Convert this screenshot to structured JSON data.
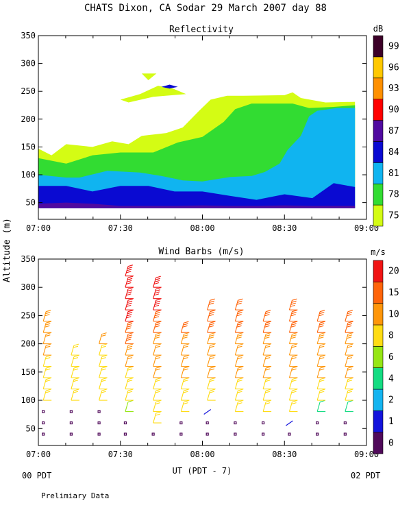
{
  "header": {
    "title": "CHATS Dixon, CA   Sodar  29 March 2007   day  88",
    "y_axis_label": "Altitude (m)",
    "x_axis_label": "UT  (PDT - 7)",
    "left_time_note": "00 PDT",
    "right_time_note": "02 PDT",
    "footnote": "Prelimiary Data"
  },
  "chart_data": [
    {
      "type": "heatmap",
      "title": "Reflectivity",
      "colorbar_label": "dB",
      "xlabel": "UT  (PDT - 7)",
      "ylabel": "Altitude (m)",
      "x_ticks": [
        "07:00",
        "07:30",
        "08:00",
        "08:30",
        "09:00"
      ],
      "xlim_hours": [
        7.0,
        9.0
      ],
      "ylim": [
        20,
        350
      ],
      "y_ticks": [
        50,
        100,
        150,
        200,
        250,
        300,
        350
      ],
      "levels": [
        75,
        78,
        81,
        84,
        87,
        90,
        93,
        96,
        99
      ],
      "level_colors": [
        "#d4fc14",
        "#32dc32",
        "#10b4f0",
        "#0a0ad2",
        "#500aa0",
        "#ff0000",
        "#ff9000",
        "#ffc800",
        "#3c0028"
      ],
      "contours": [
        {
          "level": 75,
          "points": [
            [
              7.0,
              147
            ],
            [
              7.08,
              135
            ],
            [
              7.17,
              155
            ],
            [
              7.33,
              150
            ],
            [
              7.45,
              160
            ],
            [
              7.55,
              155
            ],
            [
              7.63,
              170
            ],
            [
              7.78,
              175
            ],
            [
              7.88,
              185
            ],
            [
              7.98,
              215
            ],
            [
              8.05,
              235
            ],
            [
              8.15,
              242
            ],
            [
              8.25,
              242
            ],
            [
              8.5,
              243
            ],
            [
              8.55,
              248
            ],
            [
              8.6,
              238
            ],
            [
              8.75,
              230
            ],
            [
              8.93,
              231
            ],
            [
              8.93,
              40
            ],
            [
              7.0,
              40
            ]
          ]
        },
        {
          "level": 75,
          "points": [
            [
              7.5,
              235
            ],
            [
              7.62,
              245
            ],
            [
              7.73,
              260
            ],
            [
              7.82,
              255
            ],
            [
              7.9,
              245
            ],
            [
              7.7,
              240
            ],
            [
              7.55,
              230
            ]
          ]
        },
        {
          "level": 75,
          "points": [
            [
              7.63,
              282
            ],
            [
              7.72,
              282
            ],
            [
              7.67,
              270
            ]
          ]
        },
        {
          "level": 78,
          "points": [
            [
              7.0,
              130
            ],
            [
              7.17,
              120
            ],
            [
              7.33,
              135
            ],
            [
              7.5,
              140
            ],
            [
              7.7,
              140
            ],
            [
              7.85,
              158
            ],
            [
              8.0,
              168
            ],
            [
              8.13,
              195
            ],
            [
              8.2,
              218
            ],
            [
              8.3,
              228
            ],
            [
              8.55,
              228
            ],
            [
              8.65,
              220
            ],
            [
              8.8,
              222
            ],
            [
              8.93,
              225
            ],
            [
              8.93,
              40
            ],
            [
              7.0,
              40
            ]
          ]
        },
        {
          "level": 81,
          "points": [
            [
              7.0,
              100
            ],
            [
              7.17,
              95
            ],
            [
              7.25,
              95
            ],
            [
              7.42,
              107
            ],
            [
              7.62,
              104
            ],
            [
              7.75,
              98
            ],
            [
              7.88,
              90
            ],
            [
              8.0,
              88
            ],
            [
              8.17,
              96
            ],
            [
              8.3,
              98
            ],
            [
              8.38,
              105
            ],
            [
              8.47,
              120
            ],
            [
              8.52,
              145
            ],
            [
              8.6,
              170
            ],
            [
              8.65,
              205
            ],
            [
              8.7,
              215
            ],
            [
              8.82,
              220
            ],
            [
              8.93,
              220
            ],
            [
              8.93,
              40
            ],
            [
              7.0,
              40
            ]
          ]
        },
        {
          "level": 84,
          "points": [
            [
              7.0,
              80
            ],
            [
              7.17,
              80
            ],
            [
              7.33,
              70
            ],
            [
              7.5,
              80
            ],
            [
              7.67,
              80
            ],
            [
              7.83,
              70
            ],
            [
              8.0,
              70
            ],
            [
              8.17,
              62
            ],
            [
              8.33,
              55
            ],
            [
              8.5,
              65
            ],
            [
              8.67,
              58
            ],
            [
              8.8,
              85
            ],
            [
              8.93,
              78
            ],
            [
              8.93,
              40
            ],
            [
              7.0,
              40
            ]
          ]
        },
        {
          "level": 87,
          "points": [
            [
              7.0,
              48
            ],
            [
              7.17,
              50
            ],
            [
              7.33,
              48
            ],
            [
              7.5,
              44
            ],
            [
              7.67,
              44
            ],
            [
              7.83,
              44
            ],
            [
              8.0,
              45
            ],
            [
              8.17,
              44
            ],
            [
              8.33,
              44
            ],
            [
              8.5,
              45
            ],
            [
              8.67,
              44
            ],
            [
              8.93,
              44
            ],
            [
              8.93,
              40
            ],
            [
              7.0,
              40
            ]
          ]
        },
        {
          "level": 84,
          "points": [
            [
              7.75,
              258
            ],
            [
              7.8,
              262
            ],
            [
              7.85,
              258
            ],
            [
              7.8,
              255
            ]
          ]
        }
      ]
    },
    {
      "type": "scatter",
      "title": "Wind Barbs (m/s)",
      "colorbar_label": "m/s",
      "xlabel": "UT  (PDT - 7)",
      "ylabel": "Altitude (m)",
      "x_ticks": [
        "07:00",
        "07:30",
        "08:00",
        "08:30",
        "09:00"
      ],
      "xlim_hours": [
        7.0,
        9.0
      ],
      "ylim": [
        20,
        350
      ],
      "y_ticks": [
        50,
        100,
        150,
        200,
        250,
        300,
        350
      ],
      "speed_levels": [
        0,
        1,
        2,
        4,
        6,
        8,
        10,
        15,
        20
      ],
      "speed_colors": [
        "#500a5a",
        "#1414dc",
        "#14b4f0",
        "#14dc82",
        "#96e614",
        "#ffdc14",
        "#ff960a",
        "#ff640a",
        "#f01414"
      ],
      "columns_hours": [
        7.03,
        7.2,
        7.37,
        7.53,
        7.7,
        7.87,
        8.03,
        8.2,
        8.37,
        8.53,
        8.7,
        8.87
      ],
      "altitudes": [
        40,
        60,
        80,
        100,
        120,
        140,
        160,
        180,
        200,
        220,
        240,
        260,
        280,
        300,
        320
      ],
      "profiles_speed_ms": [
        [
          0.3,
          0.4,
          0.5,
          8,
          9,
          9,
          9,
          10,
          10,
          14,
          14,
          null,
          null,
          null,
          null
        ],
        [
          0.3,
          0.4,
          0.5,
          8,
          9,
          9,
          9,
          9,
          null,
          null,
          null,
          null,
          null,
          null,
          null
        ],
        [
          0.3,
          0.4,
          0.5,
          8,
          9,
          9,
          9,
          9,
          10,
          null,
          null,
          null,
          null,
          null,
          null
        ],
        [
          0.3,
          0.4,
          6,
          8,
          9,
          9,
          10,
          14,
          18,
          18,
          20,
          20,
          20,
          20,
          21
        ],
        [
          0.3,
          8,
          8,
          9,
          9,
          10,
          10,
          12,
          14,
          16,
          18,
          20,
          20,
          21,
          null
        ],
        [
          0.3,
          0.4,
          8,
          9,
          9,
          10,
          10,
          12,
          14,
          15,
          null,
          null,
          null,
          null,
          null
        ],
        [
          0.3,
          0.4,
          1.5,
          8,
          9,
          10,
          10,
          12,
          14,
          15,
          16,
          16,
          null,
          null,
          null
        ],
        [
          0.3,
          0.4,
          8,
          9,
          9,
          10,
          10,
          12,
          14,
          15,
          16,
          17,
          null,
          null,
          null
        ],
        [
          0.3,
          0.4,
          8,
          9,
          9,
          10,
          10,
          12,
          14,
          15,
          16,
          null,
          null,
          null,
          null
        ],
        [
          0.3,
          1.5,
          8,
          9,
          9,
          10,
          10,
          12,
          14,
          15,
          16,
          18,
          null,
          null,
          null
        ],
        [
          0.3,
          0.4,
          5,
          8,
          9,
          10,
          10,
          12,
          14,
          15,
          16,
          null,
          null,
          null,
          null
        ],
        [
          0.3,
          0.4,
          4,
          8,
          9,
          10,
          10,
          12,
          14,
          15,
          16,
          null,
          null,
          null,
          null
        ]
      ]
    }
  ]
}
